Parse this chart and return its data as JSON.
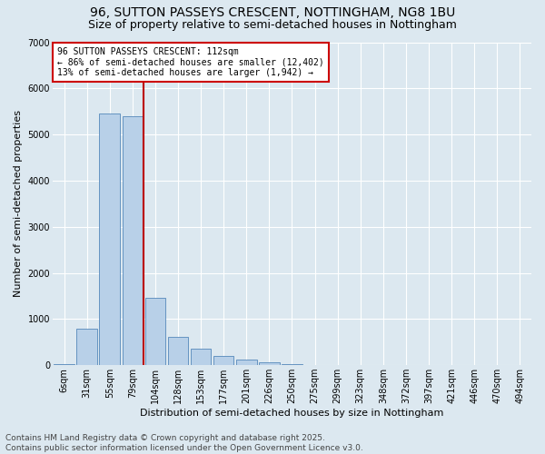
{
  "title": "96, SUTTON PASSEYS CRESCENT, NOTTINGHAM, NG8 1BU",
  "subtitle": "Size of property relative to semi-detached houses in Nottingham",
  "xlabel": "Distribution of semi-detached houses by size in Nottingham",
  "ylabel": "Number of semi-detached properties",
  "categories": [
    "6sqm",
    "31sqm",
    "55sqm",
    "79sqm",
    "104sqm",
    "128sqm",
    "153sqm",
    "177sqm",
    "201sqm",
    "226sqm",
    "250sqm",
    "275sqm",
    "299sqm",
    "323sqm",
    "348sqm",
    "372sqm",
    "397sqm",
    "421sqm",
    "446sqm",
    "470sqm",
    "494sqm"
  ],
  "values": [
    20,
    800,
    5450,
    5400,
    1450,
    620,
    350,
    200,
    120,
    70,
    25,
    3,
    2,
    0,
    0,
    0,
    0,
    0,
    0,
    0,
    0
  ],
  "bar_color": "#b8d0e8",
  "bar_edge_color": "#5588bb",
  "vline_x": 3.5,
  "vline_color": "#bb0000",
  "annotation_title": "96 SUTTON PASSEYS CRESCENT: 112sqm",
  "annotation_line1": "← 86% of semi-detached houses are smaller (12,402)",
  "annotation_line2": "13% of semi-detached houses are larger (1,942) →",
  "annotation_box_facecolor": "#ffffff",
  "annotation_box_edgecolor": "#cc0000",
  "ylim": [
    0,
    7000
  ],
  "yticks": [
    0,
    1000,
    2000,
    3000,
    4000,
    5000,
    6000,
    7000
  ],
  "background_color": "#dce8f0",
  "plot_background_color": "#dce8f0",
  "grid_color": "#ffffff",
  "footer_line1": "Contains HM Land Registry data © Crown copyright and database right 2025.",
  "footer_line2": "Contains public sector information licensed under the Open Government Licence v3.0.",
  "title_fontsize": 10,
  "subtitle_fontsize": 9,
  "xlabel_fontsize": 8,
  "ylabel_fontsize": 8,
  "tick_fontsize": 7,
  "annotation_fontsize": 7,
  "footer_fontsize": 6.5
}
